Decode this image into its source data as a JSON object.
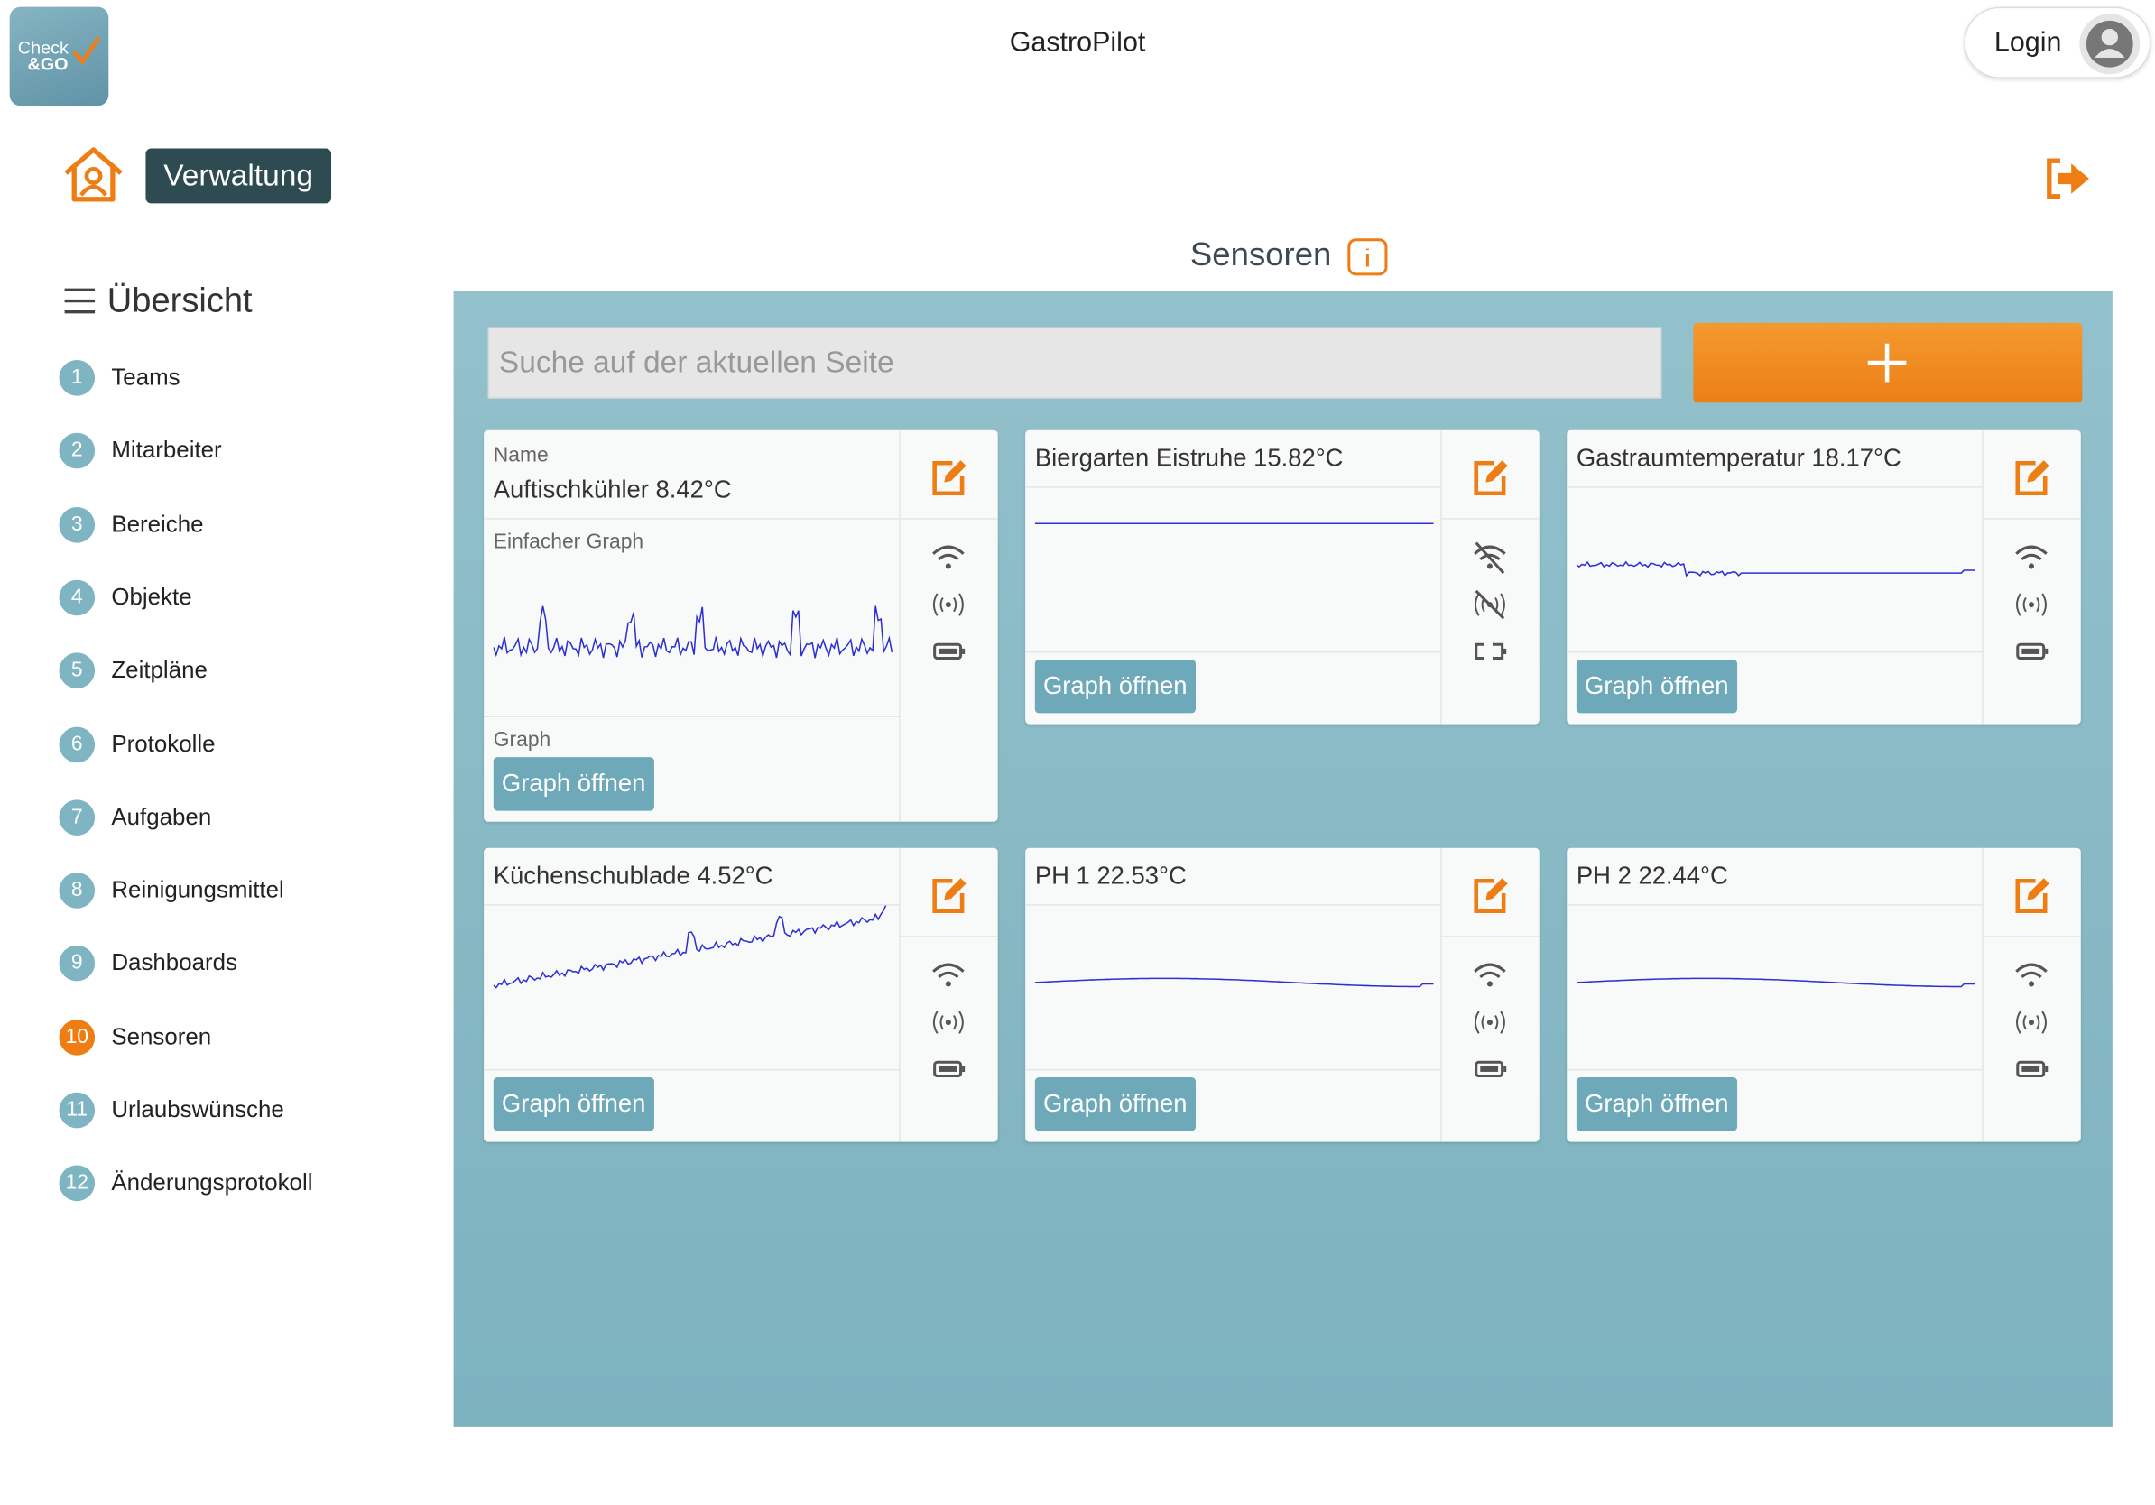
{
  "header": {
    "logo_line1": "Check",
    "logo_line2": "&GO",
    "title": "GastroPilot",
    "login": "Login"
  },
  "section": "Verwaltung",
  "nav": {
    "title": "Übersicht",
    "items": [
      {
        "number": 1,
        "label": "Teams"
      },
      {
        "number": 2,
        "label": "Mitarbeiter"
      },
      {
        "number": 3,
        "label": "Bereiche"
      },
      {
        "number": 4,
        "label": "Objekte"
      },
      {
        "number": 5,
        "label": "Zeitpläne"
      },
      {
        "number": 6,
        "label": "Protokolle"
      },
      {
        "number": 7,
        "label": "Aufgaben"
      },
      {
        "number": 8,
        "label": "Reinigungsmittel"
      },
      {
        "number": 9,
        "label": "Dashboards"
      },
      {
        "number": 10,
        "label": "Sensoren",
        "active": true
      },
      {
        "number": 11,
        "label": "Urlaubswünsche"
      },
      {
        "number": 12,
        "label": "Änderungsprotokoll"
      }
    ]
  },
  "content": {
    "title": "Sensoren",
    "search_placeholder": "Suche auf der aktuellen Seite",
    "cards": [
      {
        "name_label": "Name",
        "name": "Auftischkühler 8.42°C",
        "graph_label": "Einfacher Graph",
        "button_label": "Graph",
        "button": "Graph öffnen"
      },
      {
        "name": "Biergarten Eistruhe 15.82°C",
        "button": "Graph öffnen",
        "offline": true
      },
      {
        "name": "Gastraumtemperatur 18.17°C",
        "button": "Graph öffnen"
      },
      {
        "name": "Küchenschublade 4.52°C",
        "button": "Graph öffnen"
      },
      {
        "name": "PH 1 22.53°C",
        "button": "Graph öffnen"
      },
      {
        "name": "PH 2 22.44°C",
        "button": "Graph öffnen"
      }
    ]
  }
}
